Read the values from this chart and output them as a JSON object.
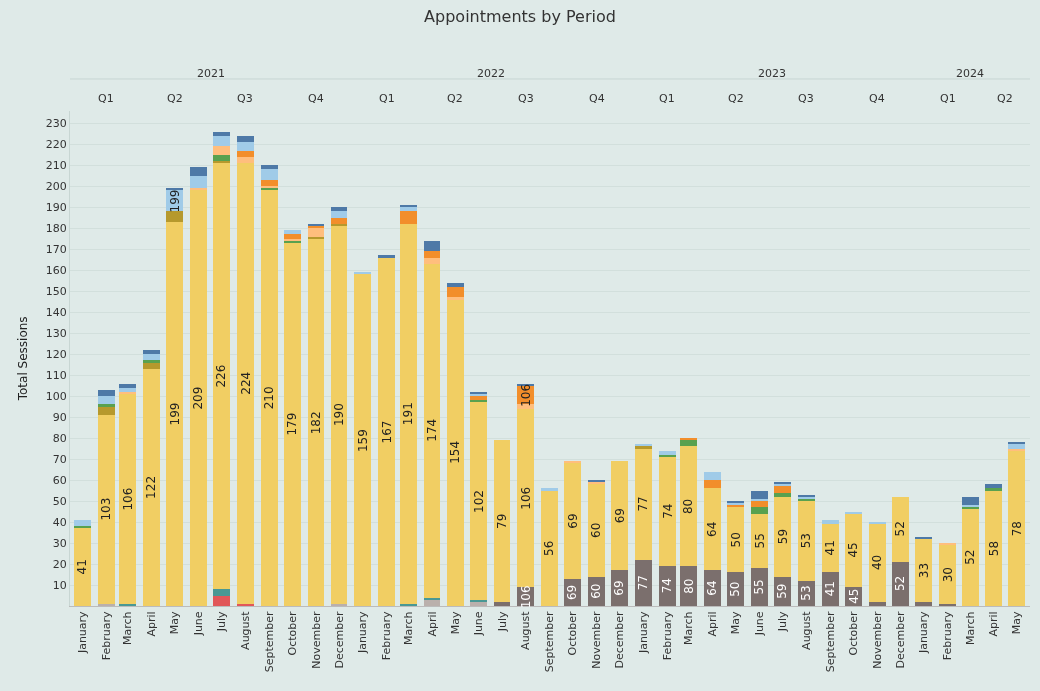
{
  "chart_data": {
    "type": "bar",
    "title": "Appointments by Period",
    "ylabel": "Total Sessions",
    "stacked": true,
    "grid": "y",
    "x": [
      "2021-01",
      "2021-02",
      "2021-03",
      "2021-04",
      "2021-05",
      "2021-06",
      "2021-07",
      "2021-08",
      "2021-09",
      "2021-10",
      "2021-11",
      "2021-12",
      "2022-01",
      "2022-02",
      "2022-03",
      "2022-04",
      "2022-05",
      "2022-06",
      "2022-07",
      "2022-08",
      "2022-09",
      "2022-10",
      "2022-11",
      "2022-12",
      "2023-01",
      "2023-02",
      "2023-03",
      "2023-04",
      "2023-05",
      "2023-06",
      "2023-07",
      "2023-08",
      "2023-09",
      "2023-10",
      "2023-11",
      "2023-12",
      "2024-01",
      "2024-02",
      "2024-03",
      "2024-04",
      "2024-05"
    ],
    "xlim": [
      "2020-12-16",
      "2024-05-18"
    ],
    "xticks": [
      {
        "value": "2021-01",
        "label": "January"
      },
      {
        "value": "2021-02",
        "label": "February"
      },
      {
        "value": "2021-03",
        "label": "March"
      },
      {
        "value": "2021-04",
        "label": "April"
      },
      {
        "value": "2021-05",
        "label": "May"
      },
      {
        "value": "2021-06",
        "label": "June"
      },
      {
        "value": "2021-07",
        "label": "July"
      },
      {
        "value": "2021-08",
        "label": "August"
      },
      {
        "value": "2021-09",
        "label": "September"
      },
      {
        "value": "2021-10",
        "label": "October"
      },
      {
        "value": "2021-11",
        "label": "November"
      },
      {
        "value": "2021-12",
        "label": "December"
      },
      {
        "value": "2022-01",
        "label": "January"
      },
      {
        "value": "2022-02",
        "label": "February"
      },
      {
        "value": "2022-03",
        "label": "March"
      },
      {
        "value": "2022-04",
        "label": "April"
      },
      {
        "value": "2022-05",
        "label": "May"
      },
      {
        "value": "2022-06",
        "label": "June"
      },
      {
        "value": "2022-07",
        "label": "July"
      },
      {
        "value": "2022-08",
        "label": "August"
      },
      {
        "value": "2022-09",
        "label": "September"
      },
      {
        "value": "2022-10",
        "label": "October"
      },
      {
        "value": "2022-11",
        "label": "November"
      },
      {
        "value": "2022-12",
        "label": "December"
      },
      {
        "value": "2023-01",
        "label": "January"
      },
      {
        "value": "2023-02",
        "label": "February"
      },
      {
        "value": "2023-03",
        "label": "March"
      },
      {
        "value": "2023-04",
        "label": "April"
      },
      {
        "value": "2023-05",
        "label": "May"
      },
      {
        "value": "2023-06",
        "label": "June"
      },
      {
        "value": "2023-07",
        "label": "July"
      },
      {
        "value": "2023-08",
        "label": "August"
      },
      {
        "value": "2023-09",
        "label": "September"
      },
      {
        "value": "2023-10",
        "label": "October"
      },
      {
        "value": "2023-11",
        "label": "November"
      },
      {
        "value": "2023-12",
        "label": "December"
      },
      {
        "value": "2024-01",
        "label": "January"
      },
      {
        "value": "2024-02",
        "label": "February"
      },
      {
        "value": "2024-03",
        "label": "March"
      },
      {
        "value": "2024-04",
        "label": "April"
      },
      {
        "value": "2024-05",
        "label": "May"
      }
    ],
    "x2ticks": [
      {
        "value": "2021-02",
        "label": "Q1"
      },
      {
        "value": "2021-05",
        "label": "Q2"
      },
      {
        "value": "2021-08",
        "label": "Q3"
      },
      {
        "value": "2021-11",
        "label": "Q4"
      },
      {
        "value": "2022-02",
        "label": "Q1"
      },
      {
        "value": "2022-05",
        "label": "Q2"
      },
      {
        "value": "2022-08",
        "label": "Q3"
      },
      {
        "value": "2022-11",
        "label": "Q4"
      },
      {
        "value": "2023-02",
        "label": "Q1"
      },
      {
        "value": "2023-05",
        "label": "Q2"
      },
      {
        "value": "2023-08",
        "label": "Q3"
      },
      {
        "value": "2023-11",
        "label": "Q4"
      },
      {
        "value": "2024-02",
        "label": "Q1"
      },
      {
        "value": "2024-04-16",
        "label": "Q2"
      }
    ],
    "x2lim": [
      "2020-12-16",
      "2024-05-18"
    ],
    "annotations": [
      "2021",
      "2022",
      "2023",
      "2024"
    ],
    "totals": [
      "41",
      "103",
      "106",
      "122",
      "199",
      "209",
      "226",
      "224",
      "210",
      "179",
      "182",
      "190",
      "159",
      "167",
      "191",
      "174",
      "154",
      "102",
      "79",
      "106",
      "56",
      "69",
      "60",
      "69",
      "77",
      "74",
      "80",
      "64",
      "50",
      "55",
      "59",
      "53",
      "41",
      "45",
      "40",
      "52",
      "33",
      "30",
      "52",
      "58",
      "78"
    ],
    "ylim": [
      0,
      236
    ],
    "yticks": [
      10,
      20,
      30,
      40,
      50,
      60,
      70,
      80,
      90,
      100,
      110,
      120,
      130,
      140,
      150,
      160,
      170,
      180,
      190,
      200,
      210,
      220,
      230
    ],
    "series": [
      {
        "color": "#7b6f6d",
        "values": [
          0,
          0,
          0,
          0,
          0,
          0,
          0,
          0,
          0,
          0,
          0,
          0,
          0,
          0,
          0,
          0,
          0,
          0,
          2,
          9,
          0,
          13,
          14,
          17,
          22,
          19,
          19,
          17,
          16,
          18,
          14,
          12,
          16,
          9,
          2,
          21,
          2,
          1,
          0,
          0,
          0
        ]
      },
      {
        "color": "#bab0ac",
        "values": [
          0,
          1,
          0,
          0,
          0,
          0,
          0,
          0,
          0,
          0,
          0,
          1,
          0,
          0,
          0,
          3,
          0,
          2,
          0,
          0,
          0,
          0,
          0,
          0,
          0,
          0,
          0,
          0,
          0,
          0,
          0,
          0,
          0,
          0,
          0,
          0,
          0,
          0,
          0,
          0,
          0
        ]
      },
      {
        "color": "#e15759",
        "values": [
          0,
          0,
          0,
          0,
          0,
          0,
          5,
          1,
          0,
          0,
          0,
          0,
          0,
          0,
          0,
          0,
          0,
          0,
          0,
          0,
          0,
          0,
          0,
          0,
          0,
          0,
          0,
          0,
          0,
          0,
          0,
          0,
          0,
          0,
          0,
          0,
          0,
          0,
          0,
          0,
          0
        ]
      },
      {
        "color": "#499894",
        "values": [
          0,
          0,
          1,
          0,
          0,
          0,
          3,
          0,
          0,
          0,
          0,
          0,
          0,
          0,
          1,
          1,
          0,
          1,
          0,
          0,
          0,
          0,
          0,
          0,
          0,
          0,
          0,
          0,
          0,
          0,
          0,
          0,
          0,
          0,
          0,
          0,
          0,
          0,
          0,
          0,
          0
        ]
      },
      {
        "color": "#f1ce63",
        "values": [
          37,
          90,
          100,
          113,
          183,
          198,
          203,
          210,
          198,
          173,
          175,
          180,
          158,
          166,
          181,
          159,
          146,
          94,
          77,
          85,
          55,
          55,
          44,
          52,
          53,
          52,
          57,
          39,
          31,
          26,
          38,
          38,
          23,
          35,
          37,
          31,
          30,
          28,
          46,
          55,
          74
        ]
      },
      {
        "color": "#b6992d",
        "values": [
          0,
          4,
          0,
          3,
          5,
          0,
          1,
          0,
          0,
          0,
          1,
          1,
          0,
          0,
          0,
          0,
          0,
          0,
          0,
          0,
          0,
          0,
          0,
          0,
          1,
          0,
          0,
          0,
          0,
          0,
          0,
          0,
          0,
          0,
          0,
          0,
          0,
          0,
          0,
          0,
          0
        ]
      },
      {
        "color": "#59a14f",
        "values": [
          1,
          1,
          0,
          1,
          0,
          0,
          3,
          0,
          1,
          1,
          0,
          0,
          0,
          0,
          0,
          0,
          0,
          1,
          0,
          0,
          0,
          0,
          0,
          0,
          0,
          1,
          3,
          0,
          0,
          3,
          2,
          1,
          0,
          0,
          0,
          0,
          0,
          0,
          1,
          1,
          0
        ]
      },
      {
        "color": "#ffbe7d",
        "values": [
          0,
          0,
          1,
          0,
          0,
          1,
          4,
          3,
          1,
          1,
          4,
          0,
          0,
          0,
          0,
          3,
          1,
          0,
          0,
          2,
          0,
          1,
          1,
          0,
          0,
          0,
          0,
          0,
          0,
          0,
          0,
          0,
          0,
          0,
          0,
          0,
          0,
          1,
          0,
          0,
          1
        ]
      },
      {
        "color": "#f28e2b",
        "values": [
          0,
          0,
          0,
          0,
          0,
          0,
          0,
          3,
          3,
          2,
          1,
          3,
          0,
          0,
          6,
          3,
          5,
          2,
          0,
          9,
          0,
          0,
          0,
          0,
          0,
          0,
          1,
          4,
          1,
          3,
          3,
          0,
          0,
          0,
          0,
          0,
          0,
          0,
          0,
          0,
          0
        ]
      },
      {
        "color": "#a0cbe8",
        "values": [
          3,
          4,
          2,
          3,
          10,
          6,
          5,
          4,
          5,
          2,
          0,
          3,
          1,
          0,
          2,
          0,
          0,
          1,
          0,
          0,
          1,
          0,
          0,
          0,
          1,
          2,
          0,
          4,
          1,
          1,
          1,
          1,
          2,
          1,
          1,
          0,
          0,
          0,
          1,
          0,
          2
        ]
      },
      {
        "color": "#4e79a7",
        "values": [
          0,
          3,
          2,
          2,
          1,
          4,
          2,
          3,
          2,
          0,
          1,
          2,
          0,
          1,
          1,
          5,
          2,
          1,
          0,
          1,
          0,
          0,
          1,
          0,
          0,
          0,
          0,
          0,
          1,
          4,
          1,
          1,
          0,
          0,
          0,
          0,
          1,
          0,
          4,
          2,
          1
        ]
      }
    ]
  }
}
